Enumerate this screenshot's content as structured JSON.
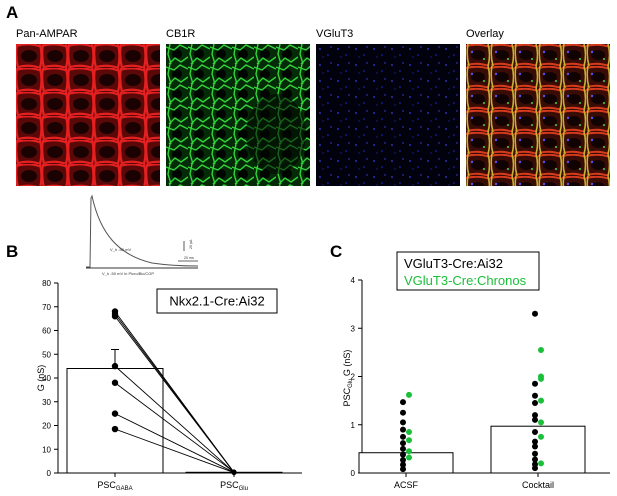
{
  "panels": {
    "A": {
      "letter": "A",
      "images": [
        {
          "label": "Pan-AMPAR",
          "color": "#d81818"
        },
        {
          "label": "CB1R",
          "color": "#1fbf2a"
        },
        {
          "label": "VGluT3",
          "color": "#2424c8"
        },
        {
          "label": "Overlay",
          "color": "#c8a040"
        }
      ]
    },
    "B": {
      "letter": "B",
      "trace": {
        "label_top": "V_h -50 mV",
        "label_bottom": "V_h -50 mV in Picro/Bic/CGP",
        "scale_y": "20 pA",
        "scale_x": "20 ms"
      }
    },
    "C": {
      "letter": "C"
    }
  },
  "chart_data": [
    {
      "type": "bar",
      "panel": "B",
      "legend_text": "Nkx2.1-Cre:Ai32",
      "ylabel": "G (nS)",
      "ylim": [
        0,
        80
      ],
      "yticks": [
        "0",
        "10",
        "20",
        "30",
        "40",
        "50",
        "60",
        "70",
        "80"
      ],
      "categories": [
        {
          "main": "PSC",
          "sub": "GABA"
        },
        {
          "main": "PSC",
          "sub": "Glu"
        }
      ],
      "bar_values": [
        44,
        0.3
      ],
      "error": [
        44,
        52
      ],
      "paired": [
        [
          68,
          0.2
        ],
        [
          67,
          0.3
        ],
        [
          66,
          0.2
        ],
        [
          45,
          0.3
        ],
        [
          38,
          0.4
        ],
        [
          25,
          0.3
        ],
        [
          18.5,
          0.2
        ]
      ]
    },
    {
      "type": "bar",
      "panel": "C",
      "legend": [
        {
          "text": "VGluT3-Cre:Ai32",
          "color": "#000000"
        },
        {
          "text": "VGluT3-Cre:Chronos",
          "color": "#1bbf3a"
        }
      ],
      "ylabel": {
        "main": "PSC",
        "sub": "Glu",
        "rest": " G (nS)"
      },
      "ylim": [
        0,
        4
      ],
      "yticks": [
        "0",
        "1",
        "2",
        "3",
        "4"
      ],
      "categories": [
        "ACSF",
        "Cocktail"
      ],
      "bar_values": [
        0.42,
        0.97
      ],
      "series": [
        {
          "name": "VGluT3-Cre:Ai32",
          "acsf": [
            1.47,
            1.25,
            1.05,
            0.9,
            0.75,
            0.62,
            0.5,
            0.38,
            0.27,
            0.17,
            0.08
          ],
          "cocktail": [
            3.3,
            1.85,
            1.6,
            1.45,
            1.2,
            1.1,
            0.85,
            0.65,
            0.55,
            0.4,
            0.28,
            0.18,
            0.1
          ]
        },
        {
          "name": "VGluT3-Cre:Chronos",
          "acsf": [
            1.62,
            0.85,
            0.68,
            0.45,
            0.32
          ],
          "cocktail": [
            2.55,
            2.0,
            1.95,
            1.5,
            1.05,
            0.75,
            0.2
          ]
        }
      ]
    }
  ]
}
